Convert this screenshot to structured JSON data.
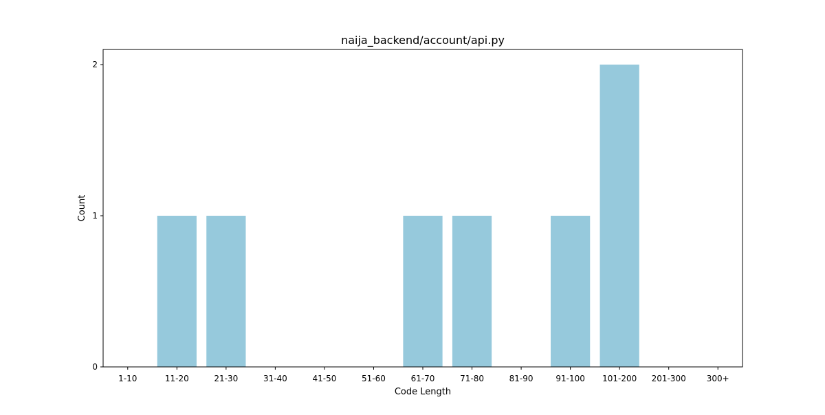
{
  "chart_data": {
    "type": "bar",
    "title": "naija_backend/account/api.py",
    "xlabel": "Code Length",
    "ylabel": "Count",
    "categories": [
      "1-10",
      "11-20",
      "21-30",
      "31-40",
      "41-50",
      "51-60",
      "61-70",
      "71-80",
      "81-90",
      "91-100",
      "101-200",
      "201-300",
      "300+"
    ],
    "values": [
      0,
      1,
      1,
      0,
      0,
      0,
      1,
      1,
      0,
      1,
      2,
      0,
      0
    ],
    "ylim": [
      0,
      2.1
    ],
    "yticks": [
      0,
      1,
      2
    ],
    "grid": false,
    "legend": "none",
    "bar_color": "#96c9dc"
  }
}
